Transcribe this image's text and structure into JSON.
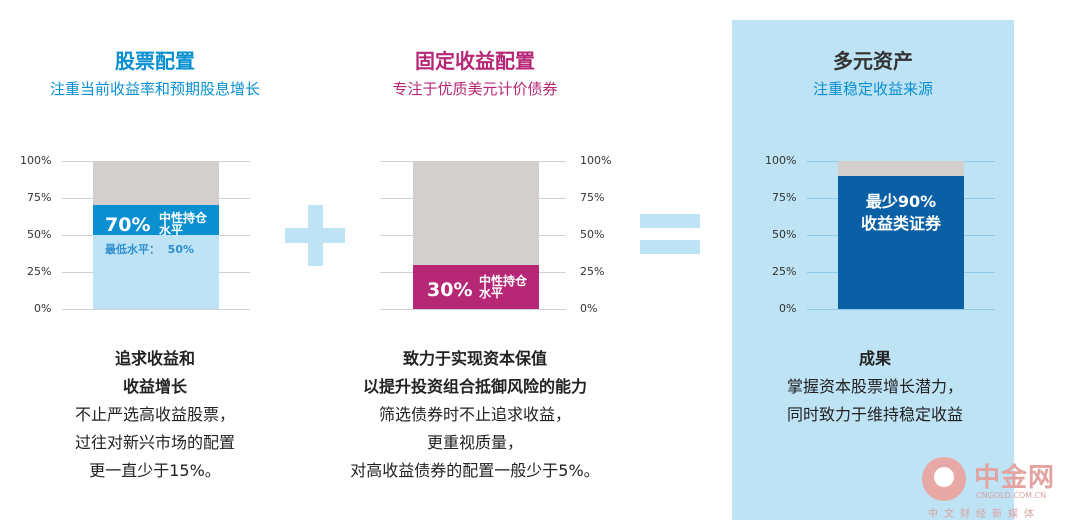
{
  "colors": {
    "equity_blue": "#0a8fd0",
    "equity_light": "#bde3f5",
    "gray_fill": "#d2cfcd",
    "fixed_magenta": "#b62776",
    "multi_navy": "#0b5fa5",
    "panel_bg": "#bde3f5",
    "title_blue": "#0a8fd0",
    "title_magenta": "#b62776"
  },
  "ticks": [
    "100%",
    "75%",
    "50%",
    "25%",
    "0%"
  ],
  "equity": {
    "title": "股票配置",
    "subtitle": "注重当前收益率和预期股息增长",
    "neutral_pct": "70%",
    "neutral_label_1": "中性持仓",
    "neutral_label_2": "水平",
    "min_label": "最低水平：  50%",
    "neutral_level": 0.7,
    "band_low": 0.5,
    "band_high": 0.7,
    "heading_1": "追求收益和",
    "heading_2": "收益增长",
    "body_1": "不止严选高收益股票，",
    "body_2": "过往对新兴市场的配置",
    "body_3": "更一直少于15%。"
  },
  "fixed_income": {
    "title": "固定收益配置",
    "subtitle": "专注于优质美元计价债券",
    "neutral_pct": "30%",
    "neutral_label_1": "中性持仓",
    "neutral_label_2": "水平",
    "neutral_level": 0.3,
    "heading_1": "致力于实现资本保值",
    "heading_2": "以提升投资组合抵御风险的能力",
    "body_1": "筛选债券时不止追求收益，",
    "body_2": "更重视质量，",
    "body_3": "对高收益债券的配置一般少于5%。"
  },
  "multi_asset": {
    "title": "多元资产",
    "subtitle": "注重稳定收益来源",
    "bar_label_1": "最少90%",
    "bar_label_2": "收益类证券",
    "min_level": 0.9,
    "heading": "成果",
    "body_1": "掌握资本股票增长潜力，",
    "body_2": "同时致力于维持稳定收益"
  },
  "logo": {
    "name": "中金网",
    "domain": "CNGOLD.COM.CN",
    "tagline": "中文财经新媒体"
  }
}
